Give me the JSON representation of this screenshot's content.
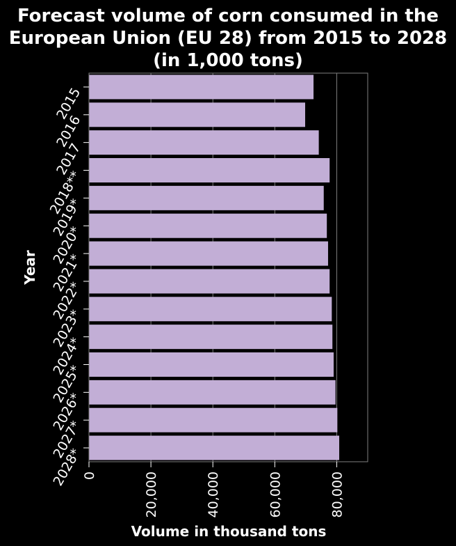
{
  "chart_data": {
    "type": "bar",
    "orientation": "horizontal",
    "title": "Forecast volume of corn consumed in the European Union (EU 28) from 2015 to 2028 (in 1,000 tons)",
    "title_lines": [
      "Forecast volume of corn consumed in the",
      "European Union (EU 28) from 2015 to 2028",
      "(in 1,000 tons)"
    ],
    "xlabel": "Volume in thousand tons",
    "ylabel": "Year",
    "categories": [
      "2015",
      "2016",
      "2017",
      "2018**",
      "2019*",
      "2020*",
      "2021*",
      "2022*",
      "2023*",
      "2024*",
      "2025*",
      "2026*",
      "2027*",
      "2028*"
    ],
    "values": [
      72500,
      69800,
      74200,
      77700,
      75800,
      76800,
      77200,
      77700,
      78400,
      78600,
      79000,
      79600,
      80200,
      80800
    ],
    "x_ticks": [
      "0",
      "20,000",
      "40,000",
      "60,000",
      "80,000"
    ],
    "x_tick_values": [
      0,
      20000,
      40000,
      60000,
      80000
    ],
    "xlim": [
      0,
      90000
    ],
    "grid": "vertical",
    "colors": {
      "bar": "#c2aed6",
      "background": "#000000",
      "text": "#ffffff",
      "grid": "#808080"
    }
  }
}
